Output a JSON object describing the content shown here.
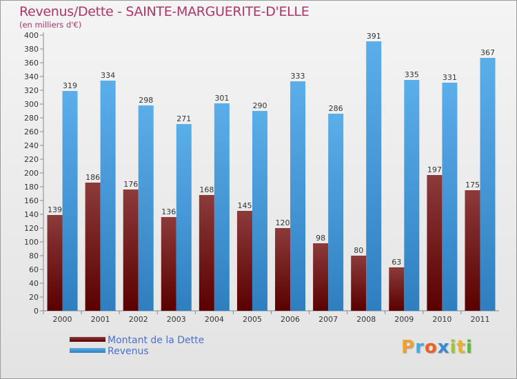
{
  "title": "Revenus/Dette - SAINTE-MARGUERITE-D'ELLE",
  "subtitle": "(en milliers d'€)",
  "colors": {
    "dette_dark": "#5a0000",
    "dette_light": "#8c3a3a",
    "revenus_dark": "#2f7fc0",
    "revenus_light": "#5aaee9",
    "title": "#b03566",
    "legend_text": "#4a6fd6"
  },
  "legend": [
    {
      "label": "Montant de la Dette",
      "series": 0
    },
    {
      "label": "Revenus",
      "series": 1
    }
  ],
  "logo": {
    "letters": [
      "P",
      "r",
      "o",
      "x",
      "i",
      "t",
      "i"
    ],
    "colors": [
      "#f0a030",
      "#4aa8e0",
      "#f06020",
      "#3a8ad0",
      "#9ac838",
      "#f0b020",
      "#60b840"
    ]
  },
  "chart_data": {
    "type": "bar",
    "categories": [
      "2000",
      "2001",
      "2002",
      "2003",
      "2004",
      "2005",
      "2006",
      "2007",
      "2008",
      "2009",
      "2010",
      "2011"
    ],
    "series": [
      {
        "name": "Montant de la Dette",
        "values": [
          139,
          186,
          176,
          136,
          168,
          145,
          120,
          98,
          80,
          63,
          197,
          175
        ]
      },
      {
        "name": "Revenus",
        "values": [
          319,
          334,
          298,
          271,
          301,
          290,
          333,
          286,
          391,
          335,
          331,
          367
        ]
      }
    ],
    "title": "Revenus/Dette - SAINTE-MARGUERITE-D'ELLE",
    "ylabel": "(en milliers d'€)",
    "ylim": [
      0,
      400
    ],
    "ytick_step": 20,
    "grid": false,
    "legend_position": "bottom-left"
  }
}
